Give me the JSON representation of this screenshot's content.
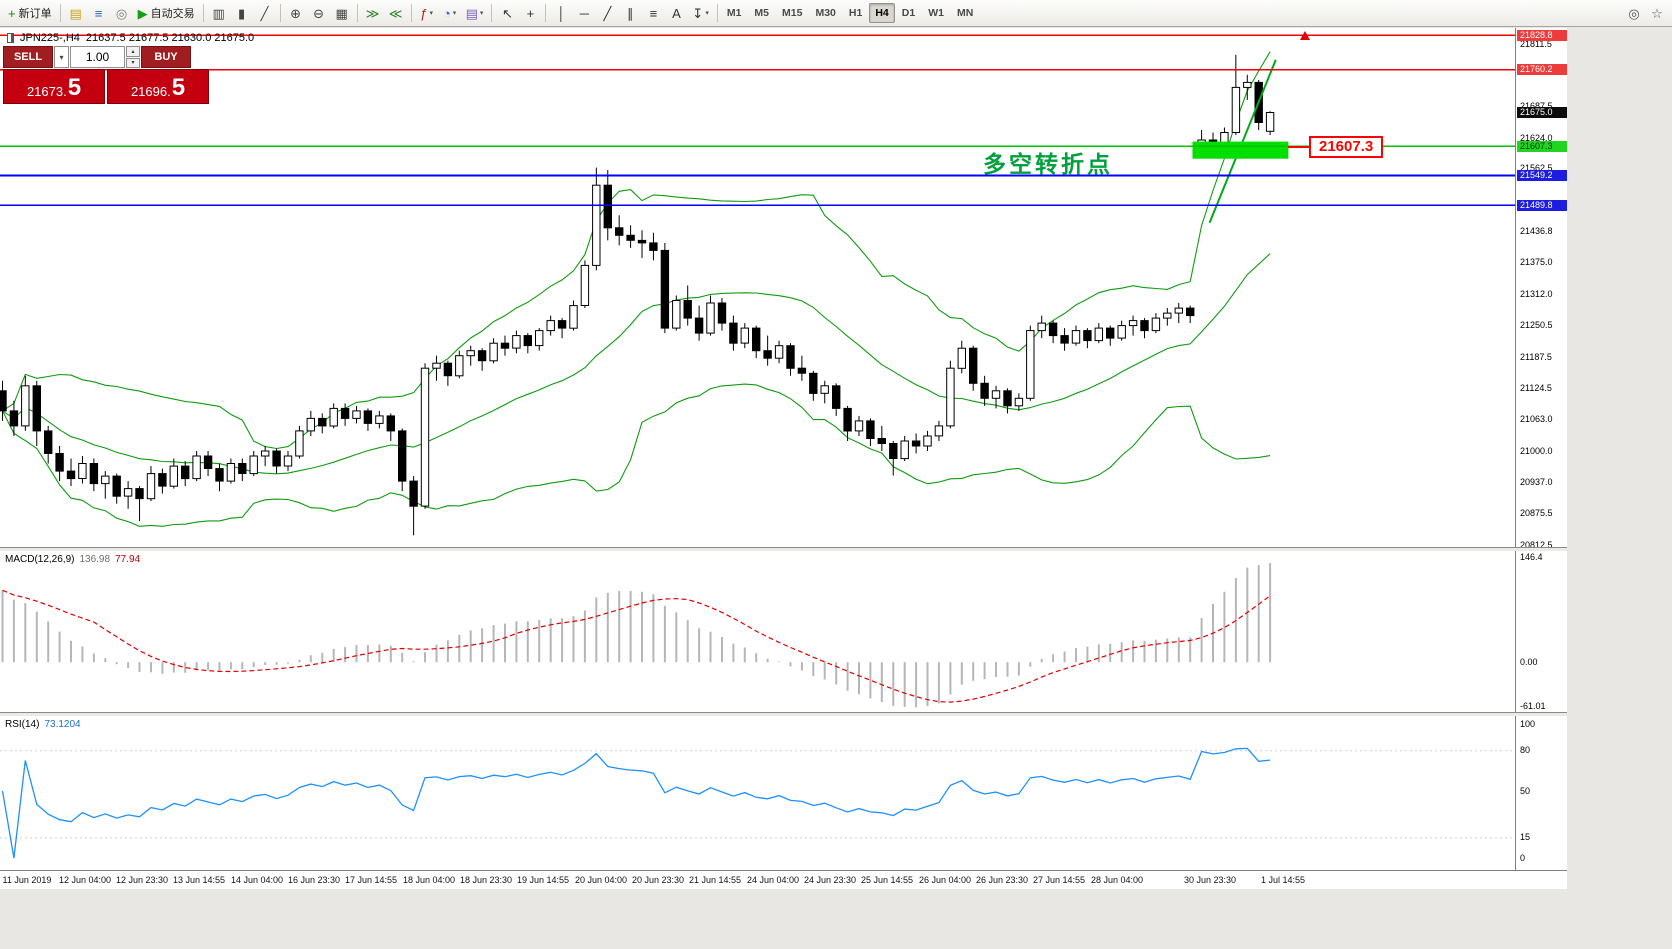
{
  "toolbar": {
    "dropdown_glyph": "▾",
    "buttons": [
      {
        "name": "new-order-button",
        "glyph": "+",
        "color": "#0a8f0a",
        "label": "新订单"
      },
      {
        "sep": true
      },
      {
        "name": "charts-window-button",
        "glyph": "▤",
        "color": "#c8a018"
      },
      {
        "name": "market-watch-button",
        "glyph": "≡",
        "color": "#2a5fbf"
      },
      {
        "name": "navigator-button",
        "glyph": "◎",
        "color": "#7a7a7a"
      },
      {
        "name": "auto-trading-button",
        "glyph": "▶",
        "color": "#12a012",
        "label": "自动交易"
      },
      {
        "sep": true
      },
      {
        "name": "bar-chart-button",
        "glyph": "▥",
        "color": "#444444"
      },
      {
        "name": "candlestick-chart-button",
        "glyph": "▮",
        "color": "#444444"
      },
      {
        "name": "line-chart-button",
        "glyph": "╱",
        "color": "#444444"
      },
      {
        "sep": true
      },
      {
        "name": "zoom-in-button",
        "glyph": "⊕",
        "color": "#444444"
      },
      {
        "name": "zoom-out-button",
        "glyph": "⊖",
        "color": "#444444"
      },
      {
        "name": "tile-windows-button",
        "glyph": "▦",
        "color": "#444444"
      },
      {
        "sep": true
      },
      {
        "name": "auto-scroll-button",
        "glyph": "≫",
        "color": "#2a7f2a"
      },
      {
        "name": "chart-shift-button",
        "glyph": "≪",
        "color": "#2a7f2a"
      },
      {
        "sep": true
      },
      {
        "name": "indicators-button",
        "glyph": "ƒ",
        "color": "#b02020",
        "dropdown": true
      },
      {
        "name": "periods-button",
        "glyph": "◔",
        "color": "#2a5fbf",
        "dropdown": true
      },
      {
        "name": "templates-button",
        "glyph": "▤",
        "color": "#7a5fbf",
        "dropdown": true
      },
      {
        "sep": true
      },
      {
        "name": "cursor-button",
        "glyph": "↖",
        "color": "#333333"
      },
      {
        "name": "crosshair-button",
        "glyph": "+",
        "color": "#333333"
      },
      {
        "sep": true
      },
      {
        "name": "vertical-line-button",
        "glyph": "│",
        "color": "#333333"
      },
      {
        "name": "horizontal-line-button",
        "glyph": "─",
        "color": "#333333"
      },
      {
        "name": "trendline-button",
        "glyph": "╱",
        "color": "#333333"
      },
      {
        "name": "equidistant-channel-button",
        "glyph": "∥",
        "color": "#333333"
      },
      {
        "name": "fibonacci-button",
        "glyph": "≡",
        "color": "#333333"
      },
      {
        "name": "text-label-button",
        "glyph": "A",
        "color": "#333333"
      },
      {
        "name": "arrows-button",
        "glyph": "↧",
        "color": "#333333",
        "dropdown": true
      },
      {
        "sep": true
      }
    ],
    "timeframes": [
      "M1",
      "M5",
      "M15",
      "M30",
      "H1",
      "H4",
      "D1",
      "W1",
      "MN"
    ],
    "active_timeframe": "H4",
    "right_buttons": [
      {
        "name": "search-button",
        "glyph": "◎",
        "color": "#555555"
      },
      {
        "name": "favorites-button",
        "glyph": "☆",
        "color": "#555555"
      }
    ]
  },
  "header": {
    "symbol": "JPN225-,H4",
    "ohlc": "21637.5 21677.5 21630.0 21675.0"
  },
  "trade_panel": {
    "sell_label": "SELL",
    "buy_label": "BUY",
    "lot_value": "1.00",
    "dropdown_glyph": "▾",
    "spinner_up": "▴",
    "spinner_down": "▾",
    "sell_price": {
      "main": "21673.",
      "big": "5"
    },
    "buy_price": {
      "main": "21696.",
      "big": "5"
    }
  },
  "chart": {
    "annotation": "多空转折点",
    "annotation_color": "#00a13c",
    "callout_label": "21607.3",
    "callout_color": "#ff0000",
    "y_ticks": [
      21811.5,
      21687.5,
      21624.0,
      21562.5,
      21436.8,
      21375.0,
      21312.0,
      21250.5,
      21187.5,
      21124.5,
      21063.0,
      21000.0,
      20937.0,
      20875.5,
      20812.5
    ],
    "levels": [
      {
        "name": "resistance-upper",
        "price": 21828.8,
        "label": "21828.8",
        "line": "#f00000",
        "width": 1.3,
        "badge_bg": "#ee3b3b",
        "badge_fg": "#ffffff"
      },
      {
        "name": "resistance-lower",
        "price": 21760.2,
        "label": "21760.2",
        "line": "#f00000",
        "width": 1.3,
        "badge_bg": "#ee3b3b",
        "badge_fg": "#ffffff"
      },
      {
        "name": "current-price",
        "price": 21675.0,
        "label": "21675.0",
        "line": null,
        "badge_bg": "#0c0c0c",
        "badge_fg": "#ffffff"
      },
      {
        "name": "pivot-level",
        "price": 21607.3,
        "label": "21607.3",
        "line": "#00c000",
        "width": 1.6,
        "badge_bg": "#1fd51f",
        "badge_fg": "#003300"
      },
      {
        "name": "support-upper",
        "price": 21549.2,
        "label": "21549.2",
        "line": "#0000ff",
        "width": 1.8,
        "badge_bg": "#1d1de0",
        "badge_fg": "#ffffff"
      },
      {
        "name": "support-lower",
        "price": 21489.8,
        "label": "21489.8",
        "line": "#0000ff",
        "width": 1.8,
        "badge_bg": "#1d1de0",
        "badge_fg": "#ffffff"
      }
    ]
  },
  "macd": {
    "label": "MACD(12,26,9)",
    "value_main": "136.98",
    "value_signal": "77.94",
    "histogram_color": "#b6b6b6",
    "signal_color": "#e00000",
    "axis": [
      {
        "label": "146.4",
        "value": 146.4
      },
      {
        "label": "0.00",
        "value": 0
      },
      {
        "label": "-61.01",
        "value": -61.01
      }
    ]
  },
  "rsi": {
    "label": "RSI(14)",
    "value": "73.1204",
    "line_color": "#1e90ff",
    "axis": [
      {
        "label": "100",
        "value": 100
      },
      {
        "label": "80",
        "value": 80,
        "dotted": true
      },
      {
        "label": "50",
        "value": 50
      },
      {
        "label": "15",
        "value": 15,
        "dotted": true
      },
      {
        "label": "0",
        "value": 0
      }
    ]
  },
  "time_axis": {
    "labels": [
      "11 Jun 2019",
      "12 Jun 04:00",
      "12 Jun 23:30",
      "13 Jun 14:55",
      "14 Jun 04:00",
      "16 Jun 23:30",
      "17 Jun 14:55",
      "18 Jun 04:00",
      "18 Jun 23:30",
      "19 Jun 14:55",
      "20 Jun 04:00",
      "20 Jun 23:30",
      "21 Jun 14:55",
      "24 Jun 04:00",
      "24 Jun 23:30",
      "25 Jun 14:55",
      "26 Jun 04:00",
      "26 Jun 23:30",
      "27 Jun 14:55",
      "28 Jun 04:00",
      "30 Jun 23:30",
      "1 Jul 14:55"
    ]
  },
  "chart_data": {
    "type": "candlestick",
    "symbol": "JPN225",
    "period": "H4",
    "price_axis_range": {
      "top": 21843.4,
      "bottom": 20808.6
    },
    "indicators": {
      "bollinger": {
        "period": 20,
        "deviation": 2,
        "color": "#0f9b0f"
      },
      "macd": {
        "fast": 12,
        "slow": 26,
        "signal": 9
      },
      "rsi": {
        "period": 14
      }
    },
    "trendline": {
      "from_candle": 105.7,
      "from_price": 21455,
      "to_candle": 111.5,
      "to_price": 21780,
      "color": "#00a81c"
    },
    "highlight_zone": {
      "from_candle": 104.2,
      "to_candle": 112.6,
      "price_top": 21617,
      "price_bottom": 21583,
      "color": "#00df00"
    },
    "candles": [
      [
        21120,
        21140,
        21060,
        21080
      ],
      [
        21080,
        21100,
        21030,
        21050
      ],
      [
        21050,
        21150,
        21040,
        21130
      ],
      [
        21130,
        21140,
        21010,
        21040
      ],
      [
        21040,
        21050,
        20975,
        20995
      ],
      [
        20995,
        21010,
        20940,
        20960
      ],
      [
        20960,
        20985,
        20930,
        20945
      ],
      [
        20945,
        20990,
        20935,
        20975
      ],
      [
        20975,
        20985,
        20920,
        20935
      ],
      [
        20935,
        20960,
        20905,
        20950
      ],
      [
        20950,
        20955,
        20895,
        20910
      ],
      [
        20910,
        20940,
        20885,
        20925
      ],
      [
        20925,
        20930,
        20860,
        20905
      ],
      [
        20905,
        20970,
        20900,
        20955
      ],
      [
        20955,
        20965,
        20915,
        20930
      ],
      [
        20930,
        20985,
        20925,
        20970
      ],
      [
        20970,
        20980,
        20930,
        20945
      ],
      [
        20945,
        21000,
        20940,
        20990
      ],
      [
        20990,
        21000,
        20950,
        20965
      ],
      [
        20965,
        20975,
        20920,
        20940
      ],
      [
        20940,
        20985,
        20935,
        20975
      ],
      [
        20975,
        20985,
        20940,
        20955
      ],
      [
        20955,
        21000,
        20950,
        20990
      ],
      [
        20990,
        21010,
        20970,
        21000
      ],
      [
        21000,
        21005,
        20955,
        20970
      ],
      [
        20970,
        21000,
        20960,
        20990
      ],
      [
        20990,
        21050,
        20985,
        21040
      ],
      [
        21040,
        21080,
        21030,
        21065
      ],
      [
        21065,
        21075,
        21035,
        21050
      ],
      [
        21050,
        21095,
        21045,
        21085
      ],
      [
        21085,
        21095,
        21050,
        21065
      ],
      [
        21065,
        21090,
        21055,
        21080
      ],
      [
        21080,
        21085,
        21040,
        21055
      ],
      [
        21055,
        21080,
        21045,
        21070
      ],
      [
        21070,
        21075,
        21020,
        21040
      ],
      [
        21040,
        21045,
        20920,
        20940
      ],
      [
        20940,
        20950,
        20832,
        20890
      ],
      [
        20890,
        21175,
        20885,
        21165
      ],
      [
        21165,
        21190,
        21140,
        21175
      ],
      [
        21175,
        21180,
        21130,
        21150
      ],
      [
        21150,
        21200,
        21145,
        21190
      ],
      [
        21190,
        21210,
        21170,
        21200
      ],
      [
        21200,
        21205,
        21160,
        21180
      ],
      [
        21180,
        21225,
        21175,
        21215
      ],
      [
        21215,
        21230,
        21190,
        21205
      ],
      [
        21205,
        21240,
        21195,
        21230
      ],
      [
        21230,
        21235,
        21195,
        21210
      ],
      [
        21210,
        21245,
        21200,
        21240
      ],
      [
        21240,
        21270,
        21230,
        21260
      ],
      [
        21260,
        21265,
        21225,
        21245
      ],
      [
        21245,
        21300,
        21240,
        21290
      ],
      [
        21290,
        21380,
        21285,
        21370
      ],
      [
        21370,
        21565,
        21360,
        21530
      ],
      [
        21530,
        21560,
        21420,
        21445
      ],
      [
        21445,
        21470,
        21410,
        21430
      ],
      [
        21430,
        21450,
        21405,
        21420
      ],
      [
        21420,
        21440,
        21385,
        21415
      ],
      [
        21415,
        21435,
        21380,
        21400
      ],
      [
        21400,
        21415,
        21235,
        21245
      ],
      [
        21245,
        21310,
        21240,
        21300
      ],
      [
        21300,
        21330,
        21250,
        21265
      ],
      [
        21265,
        21290,
        21220,
        21235
      ],
      [
        21235,
        21310,
        21230,
        21295
      ],
      [
        21295,
        21305,
        21240,
        21255
      ],
      [
        21255,
        21270,
        21200,
        21215
      ],
      [
        21215,
        21255,
        21205,
        21245
      ],
      [
        21245,
        21250,
        21185,
        21200
      ],
      [
        21200,
        21230,
        21170,
        21185
      ],
      [
        21185,
        21220,
        21175,
        21210
      ],
      [
        21210,
        21215,
        21150,
        21165
      ],
      [
        21165,
        21190,
        21140,
        21155
      ],
      [
        21155,
        21160,
        21100,
        21115
      ],
      [
        21115,
        21140,
        21095,
        21130
      ],
      [
        21130,
        21135,
        21070,
        21085
      ],
      [
        21085,
        21090,
        21020,
        21040
      ],
      [
        21040,
        21070,
        21030,
        21060
      ],
      [
        21060,
        21065,
        21010,
        21025
      ],
      [
        21025,
        21050,
        21000,
        21015
      ],
      [
        21015,
        21020,
        20951,
        20985
      ],
      [
        20985,
        21030,
        20980,
        21020
      ],
      [
        21020,
        21035,
        20995,
        21010
      ],
      [
        21010,
        21040,
        21000,
        21030
      ],
      [
        21030,
        21060,
        21020,
        21050
      ],
      [
        21050,
        21180,
        21045,
        21165
      ],
      [
        21165,
        21220,
        21155,
        21205
      ],
      [
        21205,
        21210,
        21120,
        21135
      ],
      [
        21135,
        21150,
        21090,
        21105
      ],
      [
        21105,
        21130,
        21085,
        21120
      ],
      [
        21120,
        21125,
        21075,
        21090
      ],
      [
        21090,
        21115,
        21080,
        21105
      ],
      [
        21105,
        21250,
        21100,
        21240
      ],
      [
        21240,
        21270,
        21225,
        21255
      ],
      [
        21255,
        21260,
        21215,
        21230
      ],
      [
        21230,
        21245,
        21200,
        21215
      ],
      [
        21215,
        21250,
        21210,
        21240
      ],
      [
        21240,
        21245,
        21205,
        21220
      ],
      [
        21220,
        21255,
        21215,
        21245
      ],
      [
        21245,
        21250,
        21210,
        21225
      ],
      [
        21225,
        21260,
        21220,
        21250
      ],
      [
        21250,
        21270,
        21230,
        21260
      ],
      [
        21260,
        21265,
        21225,
        21240
      ],
      [
        21240,
        21275,
        21235,
        21265
      ],
      [
        21265,
        21285,
        21250,
        21275
      ],
      [
        21275,
        21295,
        21255,
        21285
      ],
      [
        21285,
        21290,
        21255,
        21270
      ],
      [
        21610,
        21640,
        21595,
        21620
      ],
      [
        21620,
        21635,
        21590,
        21605
      ],
      [
        21605,
        21645,
        21598,
        21635
      ],
      [
        21635,
        21790,
        21630,
        21725
      ],
      [
        21725,
        21750,
        21700,
        21735
      ],
      [
        21735,
        21740,
        21640,
        21655
      ],
      [
        21637.5,
        21677.5,
        21630.0,
        21675.0
      ]
    ]
  }
}
